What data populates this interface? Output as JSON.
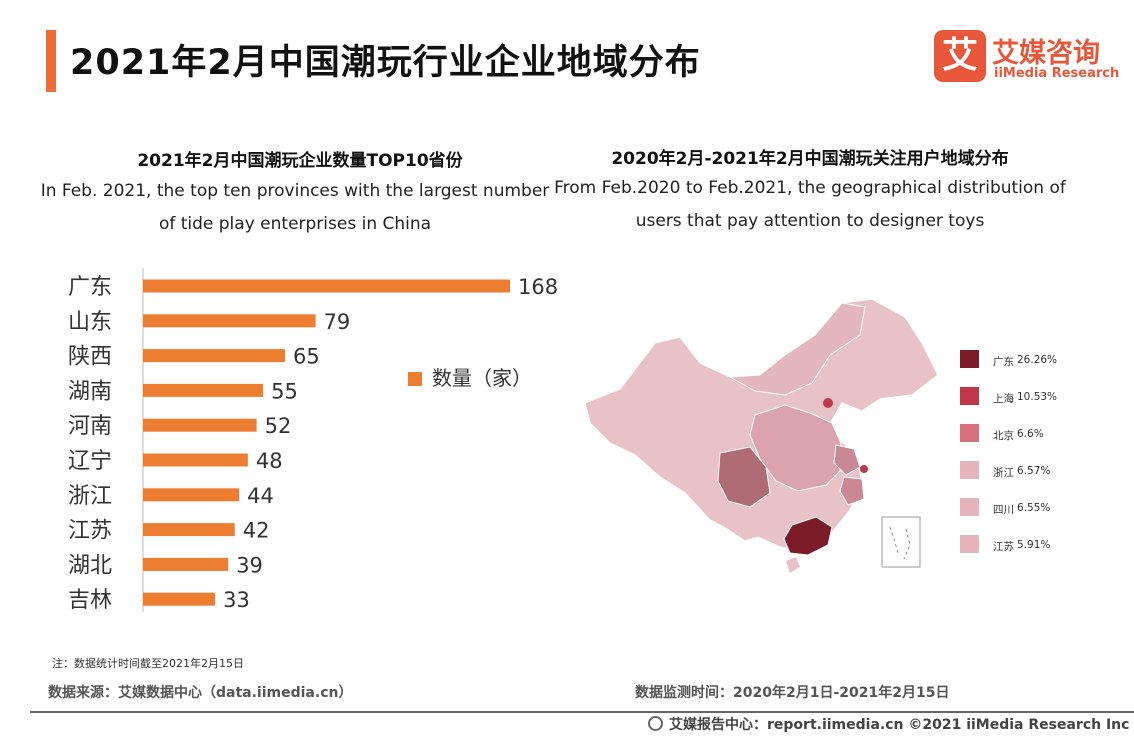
{
  "header": {
    "title": "2021年2月中国潮玩行业企业地域分布",
    "logo_mark": "艾",
    "logo_cn": "艾媒咨询",
    "logo_en": "iiMedia Research"
  },
  "left_panel": {
    "title": "2021年2月中国潮玩企业数量TOP10省份",
    "desc": "In Feb. 2021, the top ten provinces with the largest number of tide play enterprises in China"
  },
  "right_panel": {
    "title": "2020年2月-2021年2月中国潮玩关注用户地域分布",
    "desc": "From Feb.2020 to Feb.2021,  the geographical distribution of users that pay attention to designer toys"
  },
  "chart_data": [
    {
      "type": "bar",
      "orientation": "horizontal",
      "categories": [
        "广东",
        "山东",
        "陕西",
        "湖南",
        "河南",
        "辽宁",
        "浙江",
        "江苏",
        "湖北",
        "吉林"
      ],
      "series": [
        {
          "name": "数量（家）",
          "values": [
            168,
            79,
            65,
            55,
            52,
            48,
            44,
            42,
            39,
            33
          ]
        }
      ],
      "legend": "数量（家）",
      "bar_color": "#ed7d31"
    },
    {
      "type": "choropleth",
      "regions": [
        "广东",
        "上海",
        "北京",
        "浙江",
        "四川",
        "江苏"
      ],
      "values": [
        26.26,
        10.53,
        6.6,
        6.57,
        6.55,
        5.91
      ],
      "value_labels": [
        "26.26%",
        "10.53%",
        "6.6%",
        "6.57%",
        "6.55%",
        "5.91%"
      ],
      "colors": [
        "#7b1c28",
        "#c0394a",
        "#d6707a",
        "#e8b4bb",
        "#e8b4bb",
        "#e8b4bb"
      ]
    }
  ],
  "map_legend": [
    {
      "label": "广东",
      "value": "26.26%",
      "color": "#7b1c28"
    },
    {
      "label": "上海",
      "value": "10.53%",
      "color": "#c0394a"
    },
    {
      "label": "北京",
      "value": "6.6%",
      "color": "#d6707a"
    },
    {
      "label": "浙江",
      "value": "6.57%",
      "color": "#e8b4bb"
    },
    {
      "label": "四川",
      "value": "6.55%",
      "color": "#e8b4bb"
    },
    {
      "label": "江苏",
      "value": "5.91%",
      "color": "#e8b4bb"
    }
  ],
  "note": "注：数据统计时间截至2021年2月15日",
  "source": "数据来源：艾媒数据中心（data.iimedia.cn）",
  "monitor_time": "数据监测时间：2020年2月1日-2021年2月15日",
  "footer": "艾媒报告中心：report.iimedia.cn  ©2021  iiMedia Research  Inc"
}
